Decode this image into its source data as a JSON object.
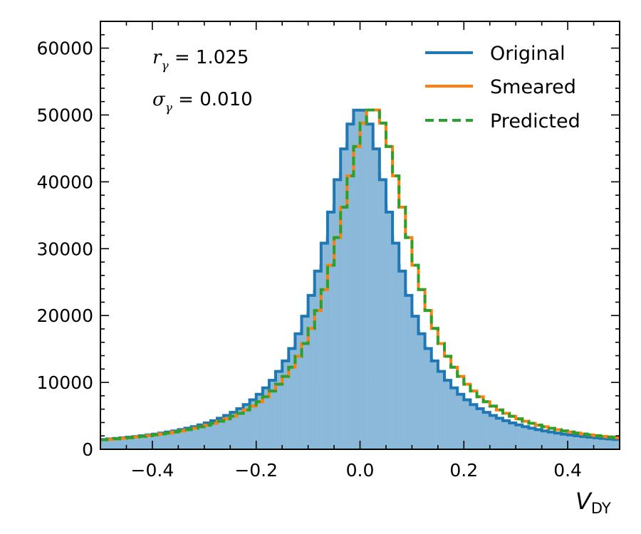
{
  "chart_data": {
    "type": "histogram",
    "xlabel": "V",
    "xlabel_subscript": "DY",
    "xlim": [
      -0.5,
      0.5
    ],
    "ylim": [
      0,
      64000
    ],
    "x_ticks": [
      -0.4,
      -0.2,
      0.0,
      0.2,
      0.4
    ],
    "x_tick_labels": [
      "−0.4",
      "−0.2",
      "0.0",
      "0.2",
      "0.4"
    ],
    "y_ticks": [
      0,
      10000,
      20000,
      30000,
      40000,
      50000,
      60000
    ],
    "y_tick_labels": [
      "0",
      "10000",
      "20000",
      "30000",
      "40000",
      "50000",
      "60000"
    ],
    "annotations": [
      {
        "symbol": "r",
        "subscript": "γ",
        "text": " = 1.025"
      },
      {
        "symbol": "σ",
        "subscript": "γ",
        "text": " = 0.010"
      }
    ],
    "legend_position": "top-right",
    "series": [
      {
        "name": "Original",
        "color": "#1f77b4",
        "style": "solid",
        "center": 0.0,
        "peak": 51000,
        "hwhm": 0.085
      },
      {
        "name": "Smeared",
        "color": "#ff7f0e",
        "style": "solid",
        "center": 0.025,
        "peak": 51000,
        "hwhm": 0.088
      },
      {
        "name": "Predicted",
        "color": "#2ca02c",
        "style": "dashed",
        "center": 0.025,
        "peak": 51000,
        "hwhm": 0.088
      }
    ],
    "fill": {
      "of_series": "Original",
      "color": "#90bcdc"
    },
    "bins": {
      "width": 0.0125,
      "count": 80
    }
  }
}
